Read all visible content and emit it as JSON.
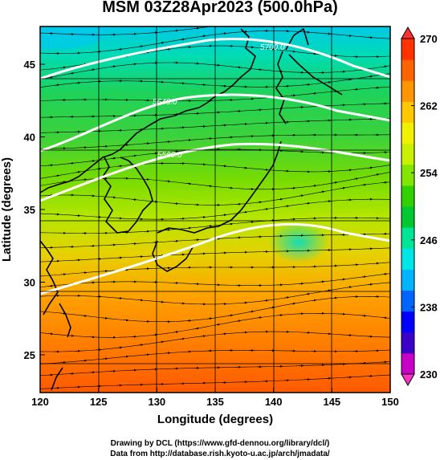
{
  "title": "MSM 03Z28Apr2023 (500.0hPa)",
  "map": {
    "x_axis": {
      "label": "Longitude (degrees)",
      "range": [
        120,
        150
      ],
      "ticks": [
        "120",
        "125",
        "130",
        "135",
        "140",
        "145",
        "150"
      ]
    },
    "y_axis": {
      "label": "Latitude  (degrees)",
      "range": [
        22.4,
        47.6
      ],
      "ticks": [
        "25",
        "30",
        "35",
        "40",
        "45"
      ]
    },
    "field": "temperature (K), shaded",
    "vectors": "wind streamlines with arrows, flowing west to east",
    "contour_labels": [
      "5700.0",
      "5640.0",
      "5580.0"
    ],
    "colorbar": {
      "ticks": [
        "230",
        "238",
        "246",
        "254",
        "262",
        "270"
      ],
      "min": 230,
      "max": 270,
      "colors": [
        "#c800c8",
        "#3c00c8",
        "#0000ff",
        "#0064ff",
        "#00b4ff",
        "#00e6e6",
        "#00e696",
        "#00c832",
        "#32d200",
        "#82e600",
        "#c8f000",
        "#f0f000",
        "#ffc800",
        "#ff9600",
        "#ff6400",
        "#ff3200"
      ]
    }
  },
  "credits": {
    "line1": "Drawing by DCL (https://www.gfd-dennou.org/library/dcl/)",
    "line2": "Data from http://database.rish.kyoto-u.ac.jp/arch/jmadata/"
  }
}
